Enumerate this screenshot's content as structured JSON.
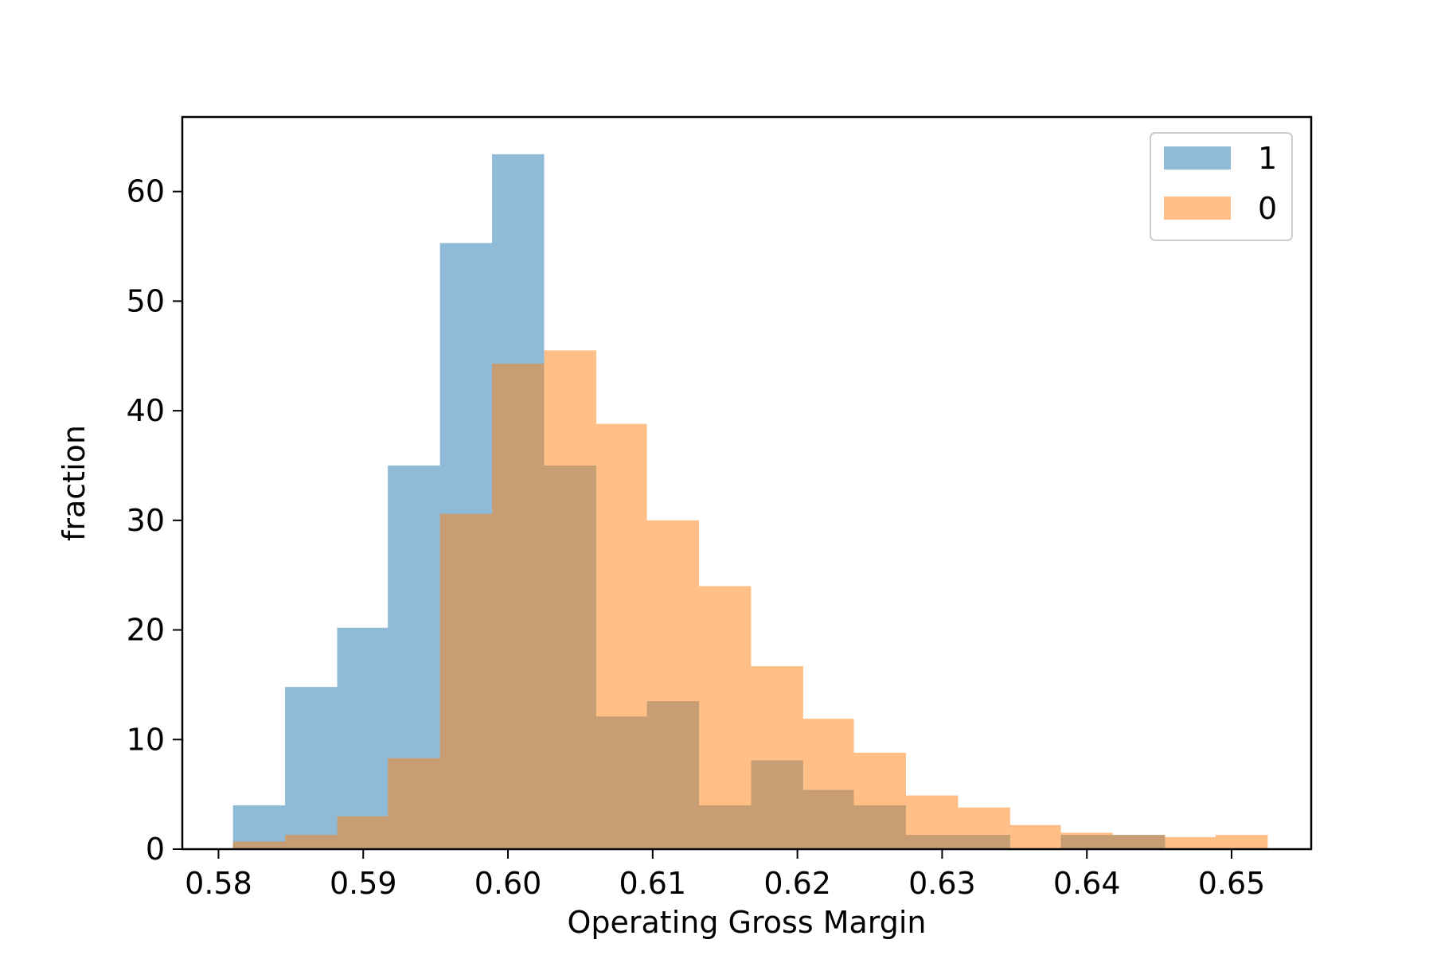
{
  "chart_data": {
    "type": "histogram",
    "xlabel": "Operating Gross Margin",
    "ylabel": "fraction",
    "xlim": [
      0.5775,
      0.6555
    ],
    "ylim": [
      0,
      66.8
    ],
    "x_ticks": [
      "0.58",
      "0.59",
      "0.60",
      "0.61",
      "0.62",
      "0.63",
      "0.64",
      "0.65"
    ],
    "y_ticks": [
      "0",
      "10",
      "20",
      "30",
      "40",
      "50",
      "60"
    ],
    "legend_position": "upper right",
    "series": [
      {
        "name": "1",
        "color": "#1f77b4",
        "alpha": 0.5,
        "bins": [
          {
            "x0": 0.581,
            "x1": 0.5846,
            "value": 4.0
          },
          {
            "x0": 0.5846,
            "x1": 0.5882,
            "value": 14.8
          },
          {
            "x0": 0.5882,
            "x1": 0.5917,
            "value": 20.2
          },
          {
            "x0": 0.5917,
            "x1": 0.5953,
            "value": 35.0
          },
          {
            "x0": 0.5953,
            "x1": 0.5989,
            "value": 55.3
          },
          {
            "x0": 0.5989,
            "x1": 0.6025,
            "value": 63.4
          },
          {
            "x0": 0.6025,
            "x1": 0.6061,
            "value": 35.0
          },
          {
            "x0": 0.6061,
            "x1": 0.6096,
            "value": 12.1
          },
          {
            "x0": 0.6096,
            "x1": 0.6132,
            "value": 13.5
          },
          {
            "x0": 0.6132,
            "x1": 0.6168,
            "value": 4.0
          },
          {
            "x0": 0.6168,
            "x1": 0.6204,
            "value": 8.1
          },
          {
            "x0": 0.6204,
            "x1": 0.6239,
            "value": 5.4
          },
          {
            "x0": 0.6239,
            "x1": 0.6275,
            "value": 4.0
          },
          {
            "x0": 0.6275,
            "x1": 0.6311,
            "value": 1.3
          },
          {
            "x0": 0.6311,
            "x1": 0.6347,
            "value": 1.3
          },
          {
            "x0": 0.6347,
            "x1": 0.6382,
            "value": 0.0
          },
          {
            "x0": 0.6382,
            "x1": 0.6418,
            "value": 1.3
          },
          {
            "x0": 0.6418,
            "x1": 0.6454,
            "value": 1.3
          }
        ]
      },
      {
        "name": "0",
        "color": "#ff7f0e",
        "alpha": 0.5,
        "bins": [
          {
            "x0": 0.581,
            "x1": 0.5846,
            "value": 0.7
          },
          {
            "x0": 0.5846,
            "x1": 0.5882,
            "value": 1.3
          },
          {
            "x0": 0.5882,
            "x1": 0.5917,
            "value": 3.0
          },
          {
            "x0": 0.5917,
            "x1": 0.5953,
            "value": 8.3
          },
          {
            "x0": 0.5953,
            "x1": 0.5989,
            "value": 30.6
          },
          {
            "x0": 0.5989,
            "x1": 0.6025,
            "value": 44.3
          },
          {
            "x0": 0.6025,
            "x1": 0.6061,
            "value": 45.5
          },
          {
            "x0": 0.6061,
            "x1": 0.6096,
            "value": 38.8
          },
          {
            "x0": 0.6096,
            "x1": 0.6132,
            "value": 30.0
          },
          {
            "x0": 0.6132,
            "x1": 0.6168,
            "value": 24.0
          },
          {
            "x0": 0.6168,
            "x1": 0.6204,
            "value": 16.7
          },
          {
            "x0": 0.6204,
            "x1": 0.6239,
            "value": 11.9
          },
          {
            "x0": 0.6239,
            "x1": 0.6275,
            "value": 8.8
          },
          {
            "x0": 0.6275,
            "x1": 0.6311,
            "value": 4.9
          },
          {
            "x0": 0.6311,
            "x1": 0.6347,
            "value": 3.8
          },
          {
            "x0": 0.6347,
            "x1": 0.6382,
            "value": 2.2
          },
          {
            "x0": 0.6382,
            "x1": 0.6418,
            "value": 1.5
          },
          {
            "x0": 0.6418,
            "x1": 0.6454,
            "value": 1.3
          },
          {
            "x0": 0.6454,
            "x1": 0.6489,
            "value": 1.1
          },
          {
            "x0": 0.6489,
            "x1": 0.6525,
            "value": 1.3
          }
        ]
      }
    ]
  }
}
